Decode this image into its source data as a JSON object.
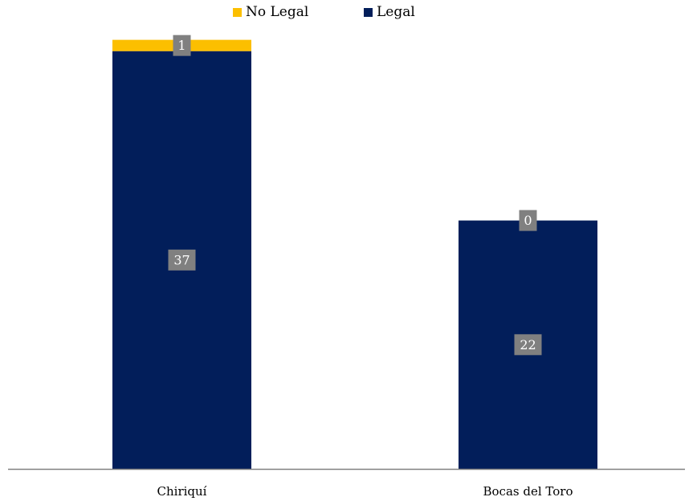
{
  "chart_data": {
    "type": "bar",
    "stacked": true,
    "categories": [
      "Chiriquí",
      "Bocas del Toro"
    ],
    "series": [
      {
        "name": "Legal",
        "values": [
          37,
          22
        ],
        "color": "#021e5a"
      },
      {
        "name": "No Legal",
        "values": [
          1,
          0
        ],
        "color": "#fcbf00"
      }
    ],
    "legend_order": [
      "No Legal",
      "Legal"
    ],
    "legend_position": "top-center",
    "ylim": [
      0,
      40
    ],
    "grid": false,
    "title": "",
    "xlabel": "",
    "ylabel": "",
    "data_label_box_color": "#808080",
    "axis_color": "#808080"
  }
}
